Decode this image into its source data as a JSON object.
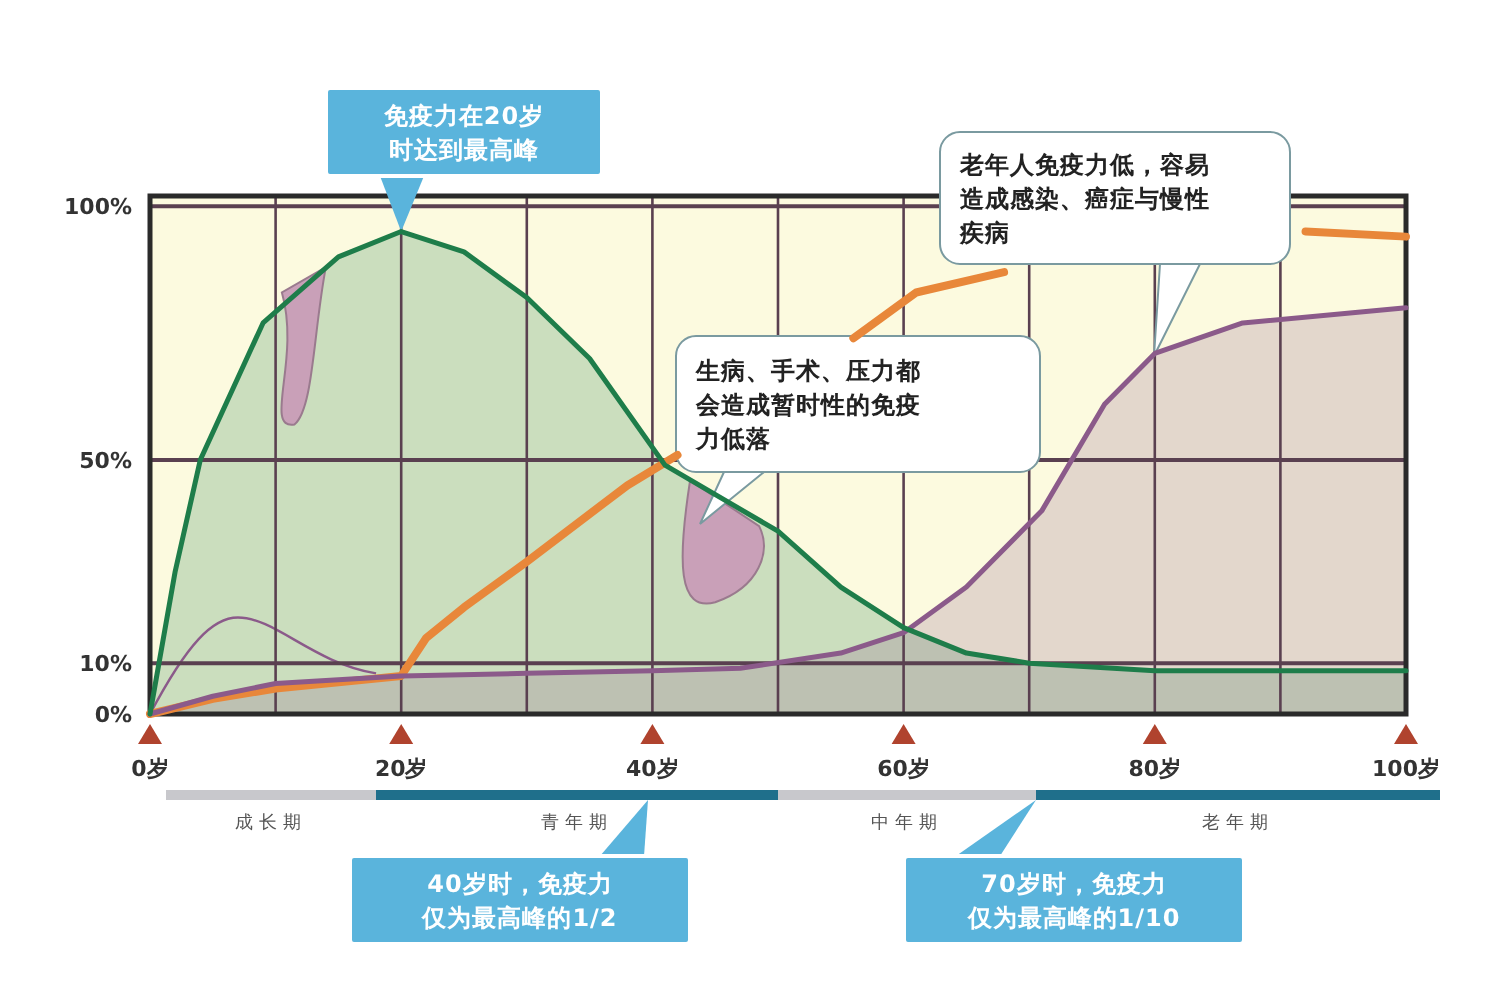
{
  "chart_data": {
    "type": "line",
    "xlim": [
      0,
      100
    ],
    "ylim": [
      0,
      102
    ],
    "xticks": [
      {
        "value": 0,
        "label": "0岁"
      },
      {
        "value": 10,
        "label": null
      },
      {
        "value": 20,
        "label": "20岁"
      },
      {
        "value": 30,
        "label": null
      },
      {
        "value": 40,
        "label": "40岁"
      },
      {
        "value": 50,
        "label": null
      },
      {
        "value": 60,
        "label": "60岁"
      },
      {
        "value": 70,
        "label": null
      },
      {
        "value": 80,
        "label": "80岁"
      },
      {
        "value": 90,
        "label": null
      },
      {
        "value": 100,
        "label": "100岁"
      }
    ],
    "yticks": [
      {
        "value": 0,
        "label": "0%"
      },
      {
        "value": 10,
        "label": "10%"
      },
      {
        "value": 50,
        "label": "50%"
      },
      {
        "value": 100,
        "label": "100%"
      }
    ],
    "grid": true,
    "series": [
      {
        "type": "area",
        "color": "#1e7d4a",
        "x": [
          0,
          2,
          4,
          9,
          15,
          20,
          25,
          30,
          35,
          41,
          50,
          55,
          60,
          65,
          70,
          80,
          90,
          100
        ],
        "values": [
          0,
          28,
          50,
          77,
          90,
          95,
          91,
          82,
          70,
          49,
          36,
          25,
          17,
          12,
          10,
          8.5,
          8.5,
          8.5
        ]
      },
      {
        "type": "area",
        "color": "#8b5a8a",
        "x": [
          0,
          5,
          10,
          20,
          30,
          40,
          47,
          55,
          60,
          65,
          71,
          76,
          80,
          87,
          100
        ],
        "values": [
          0,
          3.5,
          6,
          7.5,
          8,
          8.5,
          9,
          12,
          16,
          25,
          40,
          61,
          71,
          77,
          80
        ]
      },
      {
        "color": "#e8873a",
        "x": [
          0,
          5,
          10,
          20,
          22,
          25,
          30,
          38,
          42,
          50,
          56,
          61,
          68,
          80,
          92,
          100
        ],
        "values": [
          0,
          3,
          5,
          7.5,
          15,
          21,
          30,
          45,
          51,
          null,
          74,
          83,
          87,
          null,
          95,
          94
        ]
      }
    ],
    "annotations": [
      "成长期",
      "青年期",
      "中年期",
      "老年期",
      {
        "text": "免疫力在20岁时达到最高峰",
        "x": 20,
        "y": 95
      },
      "生病、手术、压力都会造成暂时性的免疫力低落",
      "老年人免疫力低，容易造成感染、癌症与慢性疾病",
      "40岁时，免疫力仅为最高峰的1/2",
      "70岁时，免疫力仅为最高峰的1/10"
    ]
  }
}
